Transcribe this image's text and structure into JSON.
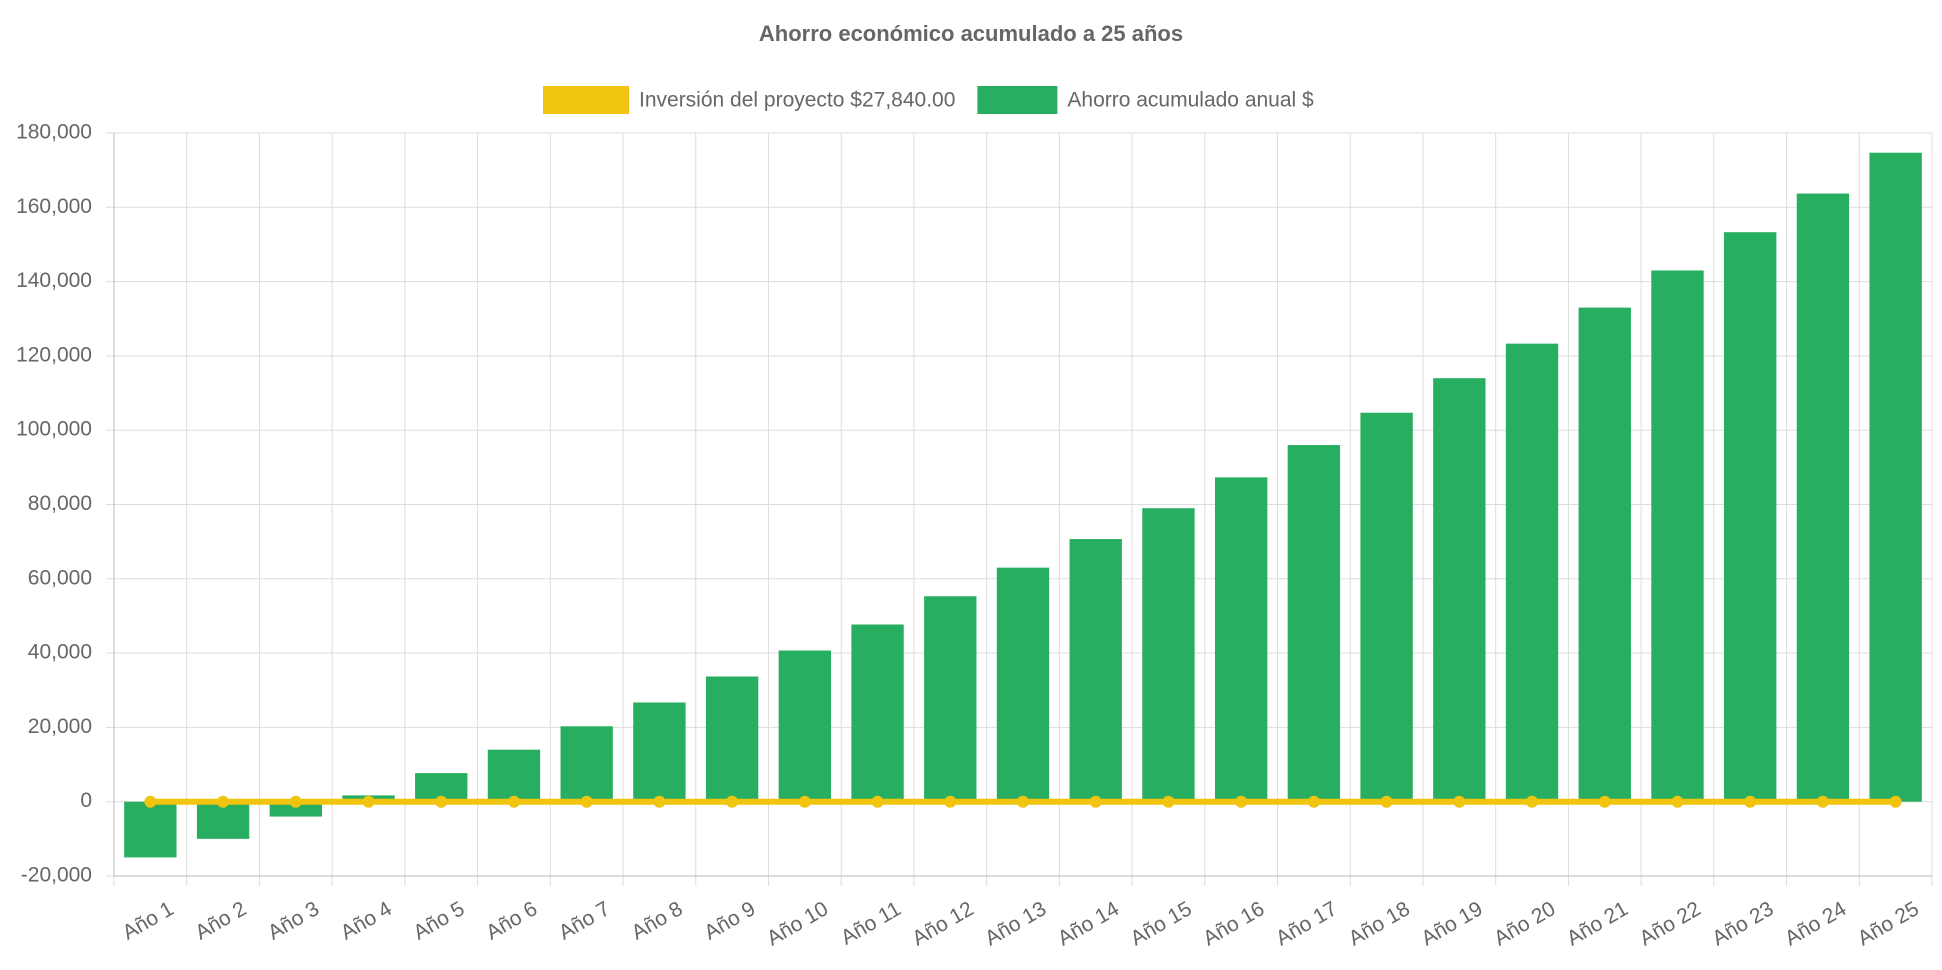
{
  "chart_data": {
    "type": "bar",
    "title": "Ahorro económico acumulado a 25 años",
    "categories": [
      "Año 1",
      "Año 2",
      "Año 3",
      "Año 4",
      "Año 5",
      "Año 6",
      "Año 7",
      "Año 8",
      "Año 9",
      "Año 10",
      "Año 11",
      "Año 12",
      "Año 13",
      "Año 14",
      "Año 15",
      "Año 16",
      "Año 17",
      "Año 18",
      "Año 19",
      "Año 20",
      "Año 21",
      "Año 22",
      "Año 23",
      "Año 24",
      "Año 25"
    ],
    "series": [
      {
        "name": "Inversión del proyecto $27,840.00",
        "color": "#f1c40f",
        "type": "line",
        "values": [
          0,
          0,
          0,
          0,
          0,
          0,
          0,
          0,
          0,
          0,
          0,
          0,
          0,
          0,
          0,
          0,
          0,
          0,
          0,
          0,
          0,
          0,
          0,
          0,
          0
        ]
      },
      {
        "name": "Ahorro acumulado anual $",
        "color": "#27ae60",
        "type": "bar",
        "values": [
          -15000,
          -10000,
          -4000,
          1700,
          7700,
          14000,
          20300,
          26700,
          33700,
          40700,
          47700,
          55300,
          63000,
          70700,
          79000,
          87300,
          96000,
          104700,
          114000,
          123300,
          133000,
          143000,
          153300,
          163700,
          174700
        ]
      }
    ],
    "ylim": [
      -20000,
      180000
    ],
    "yticks": [
      {
        "value": -20000,
        "label": "-20,000"
      },
      0,
      {
        "value": 20000,
        "label": "20,000"
      },
      {
        "value": 40000,
        "label": "40,000"
      },
      {
        "value": 60000,
        "label": "60,000"
      },
      {
        "value": 80000,
        "label": "80,000"
      },
      {
        "value": 100000,
        "label": "100,000"
      },
      {
        "value": 120000,
        "label": "120,000"
      },
      {
        "value": 140000,
        "label": "140,000"
      },
      {
        "value": 160000,
        "label": "160,000"
      },
      {
        "value": 180000,
        "label": "180,000"
      }
    ],
    "grid": true
  }
}
